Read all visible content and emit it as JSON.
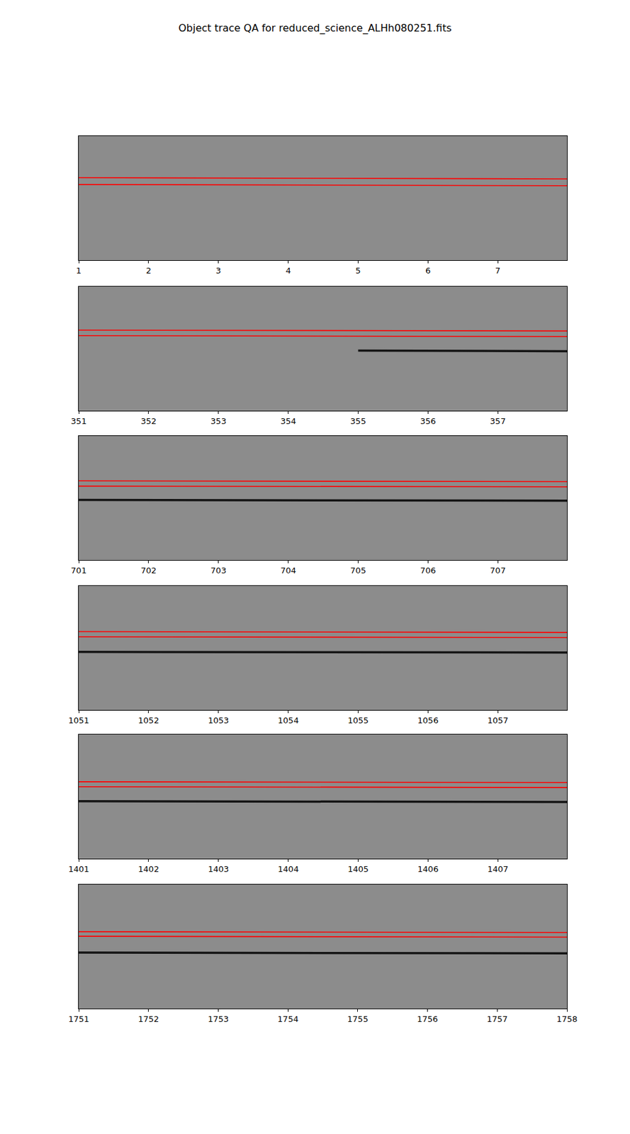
{
  "title": "Object trace QA for reduced_science_ALHh080251.fits",
  "chart_data": [
    {
      "type": "line",
      "x": [
        1,
        4.5,
        7.99
      ],
      "xlim": [
        1,
        7.99
      ],
      "xticks": [
        1,
        2,
        3,
        4,
        5,
        6,
        7
      ],
      "ylim": [
        0,
        100
      ],
      "tick_labels": "x",
      "grid": false,
      "series": [
        {
          "color": "#ff0000",
          "values": [
            66.5,
            66,
            65.5
          ]
        },
        {
          "color": "#ff0000",
          "values": [
            61,
            60.5,
            60
          ]
        }
      ]
    },
    {
      "type": "line",
      "x": [
        351,
        355,
        357.99
      ],
      "xlim": [
        351,
        357.99
      ],
      "xticks": [
        351,
        352,
        353,
        354,
        355,
        356,
        357
      ],
      "ylim": [
        0,
        100
      ],
      "tick_labels": "x",
      "grid": false,
      "series": [
        {
          "color": "#ff0000",
          "values": [
            65,
            64.7,
            64.3
          ]
        },
        {
          "color": "#ff0000",
          "values": [
            60.5,
            60.2,
            59.8
          ]
        },
        {
          "color": "#141414",
          "values": [
            null,
            48.5,
            48
          ]
        }
      ]
    },
    {
      "type": "line",
      "x": [
        701,
        704.5,
        707.99
      ],
      "xlim": [
        701,
        707.99
      ],
      "xticks": [
        701,
        702,
        703,
        704,
        705,
        706,
        707
      ],
      "ylim": [
        0,
        100
      ],
      "tick_labels": "x",
      "grid": false,
      "series": [
        {
          "color": "#ff0000",
          "values": [
            63.8,
            63.5,
            63.2
          ]
        },
        {
          "color": "#ff0000",
          "values": [
            59.6,
            59.3,
            59
          ]
        },
        {
          "color": "#141414",
          "values": [
            48.5,
            48,
            47.8
          ]
        }
      ]
    },
    {
      "type": "line",
      "x": [
        1051,
        1054.5,
        1057.99
      ],
      "xlim": [
        1051,
        1057.99
      ],
      "xticks": [
        1051,
        1052,
        1053,
        1054,
        1055,
        1056,
        1057
      ],
      "ylim": [
        0,
        100
      ],
      "tick_labels": "x",
      "grid": false,
      "series": [
        {
          "color": "#ff0000",
          "values": [
            63.2,
            62.8,
            62.5
          ]
        },
        {
          "color": "#ff0000",
          "values": [
            59,
            58.7,
            58.4
          ]
        },
        {
          "color": "#141414",
          "values": [
            46.8,
            46.5,
            46.3
          ]
        }
      ]
    },
    {
      "type": "line",
      "x": [
        1401,
        1404.5,
        1407.99
      ],
      "xlim": [
        1401,
        1407.99
      ],
      "xticks": [
        1401,
        1402,
        1403,
        1404,
        1405,
        1406,
        1407
      ],
      "ylim": [
        0,
        100
      ],
      "tick_labels": "x",
      "grid": false,
      "series": [
        {
          "color": "#ff0000",
          "values": [
            62,
            61.6,
            61.3
          ]
        },
        {
          "color": "#ff0000",
          "values": [
            58,
            57.6,
            57.3
          ]
        },
        {
          "color": "#141414",
          "values": [
            46.3,
            46,
            45.7
          ]
        }
      ]
    },
    {
      "type": "line",
      "x": [
        1751,
        1754.5,
        1758
      ],
      "xlim": [
        1751,
        1758
      ],
      "xticks": [
        1751,
        1752,
        1753,
        1754,
        1755,
        1756,
        1757,
        1758
      ],
      "ylim": [
        0,
        100
      ],
      "tick_labels": "x",
      "grid": false,
      "series": [
        {
          "color": "#ff0000",
          "values": [
            62,
            61.6,
            61.3
          ]
        },
        {
          "color": "#ff0000",
          "values": [
            58.3,
            58,
            57.6
          ]
        },
        {
          "color": "#141414",
          "values": [
            45.2,
            44.8,
            44.5
          ]
        }
      ]
    }
  ]
}
